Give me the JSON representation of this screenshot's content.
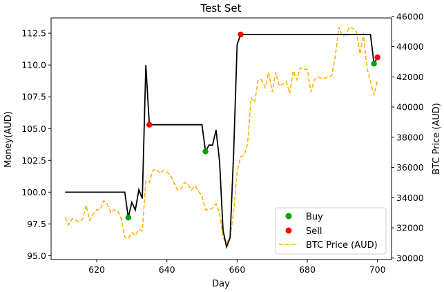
{
  "chart_data": {
    "type": "line",
    "title": "Test Set",
    "xlabel": "Day",
    "ylabel_left": "Money(AUD)",
    "ylabel_right": "BTC Price (AUD)",
    "xlim": [
      607,
      704
    ],
    "ylim_left": [
      94.7,
      113.7
    ],
    "ylim_right": [
      29900,
      45900
    ],
    "xticks": [
      620,
      640,
      660,
      680,
      700
    ],
    "yticks_left": [
      95.0,
      97.5,
      100.0,
      102.5,
      105.0,
      107.5,
      110.0,
      112.5
    ],
    "yticks_left_labels": [
      "95.0",
      "97.5",
      "100.0",
      "102.5",
      "105.0",
      "107.5",
      "110.0",
      "112.5"
    ],
    "yticks_right": [
      30000,
      32000,
      34000,
      36000,
      38000,
      40000,
      42000,
      44000,
      46000
    ],
    "legend_position": "lower-right",
    "colors": {
      "money": "#000000",
      "btc": "#ffb000",
      "buy": "#00a000",
      "sell": "#ff0000"
    },
    "money_series": {
      "x": [
        611,
        612,
        613,
        614,
        615,
        616,
        617,
        618,
        619,
        620,
        621,
        622,
        623,
        624,
        625,
        626,
        627,
        628,
        629,
        630,
        631,
        632,
        633,
        634,
        635,
        636,
        637,
        638,
        639,
        640,
        641,
        642,
        643,
        644,
        645,
        646,
        647,
        648,
        649,
        650,
        651,
        652,
        653,
        654,
        655,
        656,
        657,
        658,
        659,
        660,
        661,
        662,
        663,
        664,
        665,
        666,
        667,
        668,
        669,
        670,
        671,
        672,
        673,
        674,
        675,
        676,
        677,
        678,
        679,
        680,
        681,
        682,
        683,
        684,
        685,
        686,
        687,
        688,
        689,
        690,
        691,
        692,
        693,
        694,
        695,
        696,
        697,
        698,
        699,
        700
      ],
      "y": [
        100.0,
        100.0,
        100.0,
        100.0,
        100.0,
        100.0,
        100.0,
        100.0,
        100.0,
        100.0,
        100.0,
        100.0,
        100.0,
        100.0,
        100.0,
        100.0,
        100.0,
        100.0,
        98.0,
        99.2,
        98.6,
        100.2,
        99.5,
        110.0,
        105.3,
        105.3,
        105.3,
        105.3,
        105.3,
        105.3,
        105.3,
        105.3,
        105.3,
        105.3,
        105.3,
        105.3,
        105.3,
        105.3,
        105.3,
        105.3,
        103.2,
        103.7,
        103.7,
        104.9,
        102.4,
        97.0,
        95.7,
        96.4,
        103.0,
        111.6,
        112.4,
        112.4,
        112.4,
        112.4,
        112.4,
        112.4,
        112.4,
        112.4,
        112.4,
        112.4,
        112.4,
        112.4,
        112.4,
        112.4,
        112.4,
        112.4,
        112.4,
        112.4,
        112.4,
        112.4,
        112.4,
        112.4,
        112.4,
        112.4,
        112.4,
        112.4,
        112.4,
        112.4,
        112.4,
        112.4,
        112.4,
        112.4,
        112.4,
        112.4,
        112.4,
        112.4,
        112.4,
        112.4,
        110.1,
        110.6
      ]
    },
    "btc_series": {
      "name": "BTC Price (AUD)",
      "x": [
        611,
        612,
        613,
        614,
        615,
        616,
        617,
        618,
        619,
        620,
        621,
        622,
        623,
        624,
        625,
        626,
        627,
        628,
        629,
        630,
        631,
        632,
        633,
        634,
        635,
        636,
        637,
        638,
        639,
        640,
        641,
        642,
        643,
        644,
        645,
        646,
        647,
        648,
        649,
        650,
        651,
        652,
        653,
        654,
        655,
        656,
        657,
        658,
        659,
        660,
        661,
        662,
        663,
        664,
        665,
        666,
        667,
        668,
        669,
        670,
        671,
        672,
        673,
        674,
        675,
        676,
        677,
        678,
        679,
        680,
        681,
        682,
        683,
        684,
        685,
        686,
        687,
        688,
        689,
        690,
        691,
        692,
        693,
        694,
        695,
        696,
        697,
        698,
        699,
        700
      ],
      "y": [
        32700,
        32200,
        32600,
        32500,
        32400,
        32600,
        33500,
        32500,
        32900,
        33200,
        33200,
        33800,
        33600,
        33000,
        33200,
        33100,
        32600,
        31400,
        31300,
        31700,
        31500,
        31900,
        31800,
        35100,
        35000,
        35800,
        35900,
        35600,
        35800,
        35700,
        35500,
        35000,
        34500,
        34600,
        35000,
        34900,
        34500,
        34800,
        34400,
        34100,
        33200,
        33200,
        33300,
        33600,
        33000,
        31400,
        31000,
        31400,
        33000,
        35700,
        36700,
        36800,
        37600,
        40600,
        40300,
        41800,
        41800,
        41300,
        42300,
        41000,
        42300,
        41400,
        41500,
        41700,
        40900,
        42400,
        41800,
        42600,
        42500,
        42500,
        41000,
        41800,
        42000,
        41900,
        41900,
        42000,
        42100,
        43400,
        45300,
        44700,
        44800,
        45300,
        45200,
        45000,
        43500,
        44900,
        42600,
        41700,
        40800,
        41800
      ]
    },
    "buy_points": {
      "x": [
        629,
        651,
        699
      ],
      "y": [
        98.0,
        103.2,
        110.1
      ]
    },
    "sell_points": {
      "x": [
        635,
        661,
        700
      ],
      "y": [
        105.3,
        112.4,
        110.6
      ]
    },
    "legend": {
      "buy": "Buy",
      "sell": "Sell",
      "btc": "BTC Price (AUD)"
    }
  }
}
